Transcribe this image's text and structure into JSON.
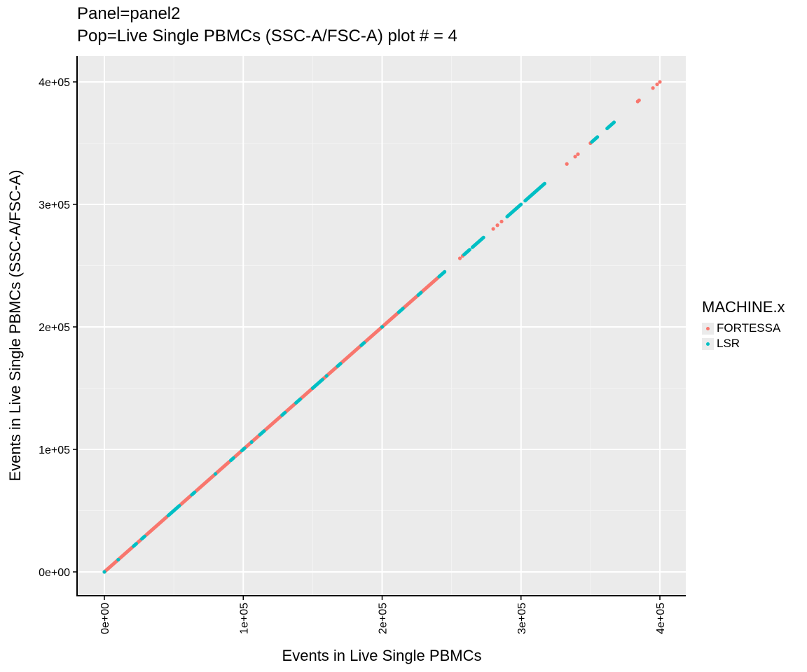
{
  "chart_data": {
    "type": "scatter",
    "title_lines": [
      "Panel=panel2",
      "Pop=Live Single PBMCs (SSC-A/FSC-A) plot # = 4"
    ],
    "xlabel": "Events in Live Single PBMCs",
    "ylabel": "Events in Live Single PBMCs (SSC-A/FSC-A)",
    "xlim": [
      -20000,
      420000
    ],
    "ylim": [
      -20000,
      400000
    ],
    "xticks": [
      0,
      100000,
      200000,
      300000,
      400000
    ],
    "yticks": [
      0,
      100000,
      200000,
      300000,
      400000
    ],
    "xtick_labels": [
      "0e+00",
      "1e+05",
      "2e+05",
      "3e+05",
      "4e+05"
    ],
    "ytick_labels": [
      "0e+00",
      "1e+05",
      "2e+05",
      "3e+05",
      "4e+05"
    ],
    "grid": true,
    "legend_title": "MACHINE.x",
    "legend_position": "right",
    "series": [
      {
        "name": "FORTESSA",
        "color": "#F8766D",
        "segments": [
          [
            0,
            20000
          ],
          [
            24000,
            26000
          ],
          [
            30000,
            45000
          ],
          [
            55000,
            62000
          ],
          [
            66000,
            90000
          ],
          [
            94000,
            98000
          ],
          [
            100000,
            112000
          ],
          [
            115000,
            128000
          ],
          [
            130000,
            138000
          ],
          [
            141000,
            150000
          ],
          [
            157000,
            168000
          ],
          [
            170000,
            185000
          ],
          [
            187000,
            212000
          ],
          [
            215000,
            226000
          ],
          [
            228000,
            240000
          ]
        ],
        "points": [
          [
            256000,
            256000
          ],
          [
            258000,
            258000
          ],
          [
            280000,
            280000
          ],
          [
            283000,
            283000
          ],
          [
            286000,
            286000
          ],
          [
            297000,
            297000
          ],
          [
            333000,
            333000
          ],
          [
            339000,
            339000
          ],
          [
            341000,
            341000
          ],
          [
            350000,
            350000
          ],
          [
            384000,
            384000
          ],
          [
            385000,
            385000
          ],
          [
            395000,
            395000
          ],
          [
            398000,
            398000
          ],
          [
            400000,
            400000
          ]
        ]
      },
      {
        "name": "LSR",
        "color": "#00BFC4",
        "segments": [
          [
            21000,
            23000
          ],
          [
            27000,
            29000
          ],
          [
            46000,
            54000
          ],
          [
            63000,
            65000
          ],
          [
            91000,
            93000
          ],
          [
            99000,
            101000
          ],
          [
            112000,
            115000
          ],
          [
            128000,
            130000
          ],
          [
            138000,
            141000
          ],
          [
            150000,
            157000
          ],
          [
            168000,
            170000
          ],
          [
            185000,
            187000
          ],
          [
            212000,
            215000
          ],
          [
            226000,
            228000
          ],
          [
            241000,
            245000
          ],
          [
            259000,
            263000
          ],
          [
            265000,
            273000
          ],
          [
            290000,
            300000
          ],
          [
            303000,
            317000
          ],
          [
            351000,
            355000
          ],
          [
            362000,
            367000
          ]
        ],
        "points": [
          [
            0,
            0
          ],
          [
            10000,
            10000
          ],
          [
            80000,
            80000
          ],
          [
            106000,
            106000
          ],
          [
            160000,
            160000
          ],
          [
            200000,
            200000
          ]
        ]
      }
    ]
  }
}
